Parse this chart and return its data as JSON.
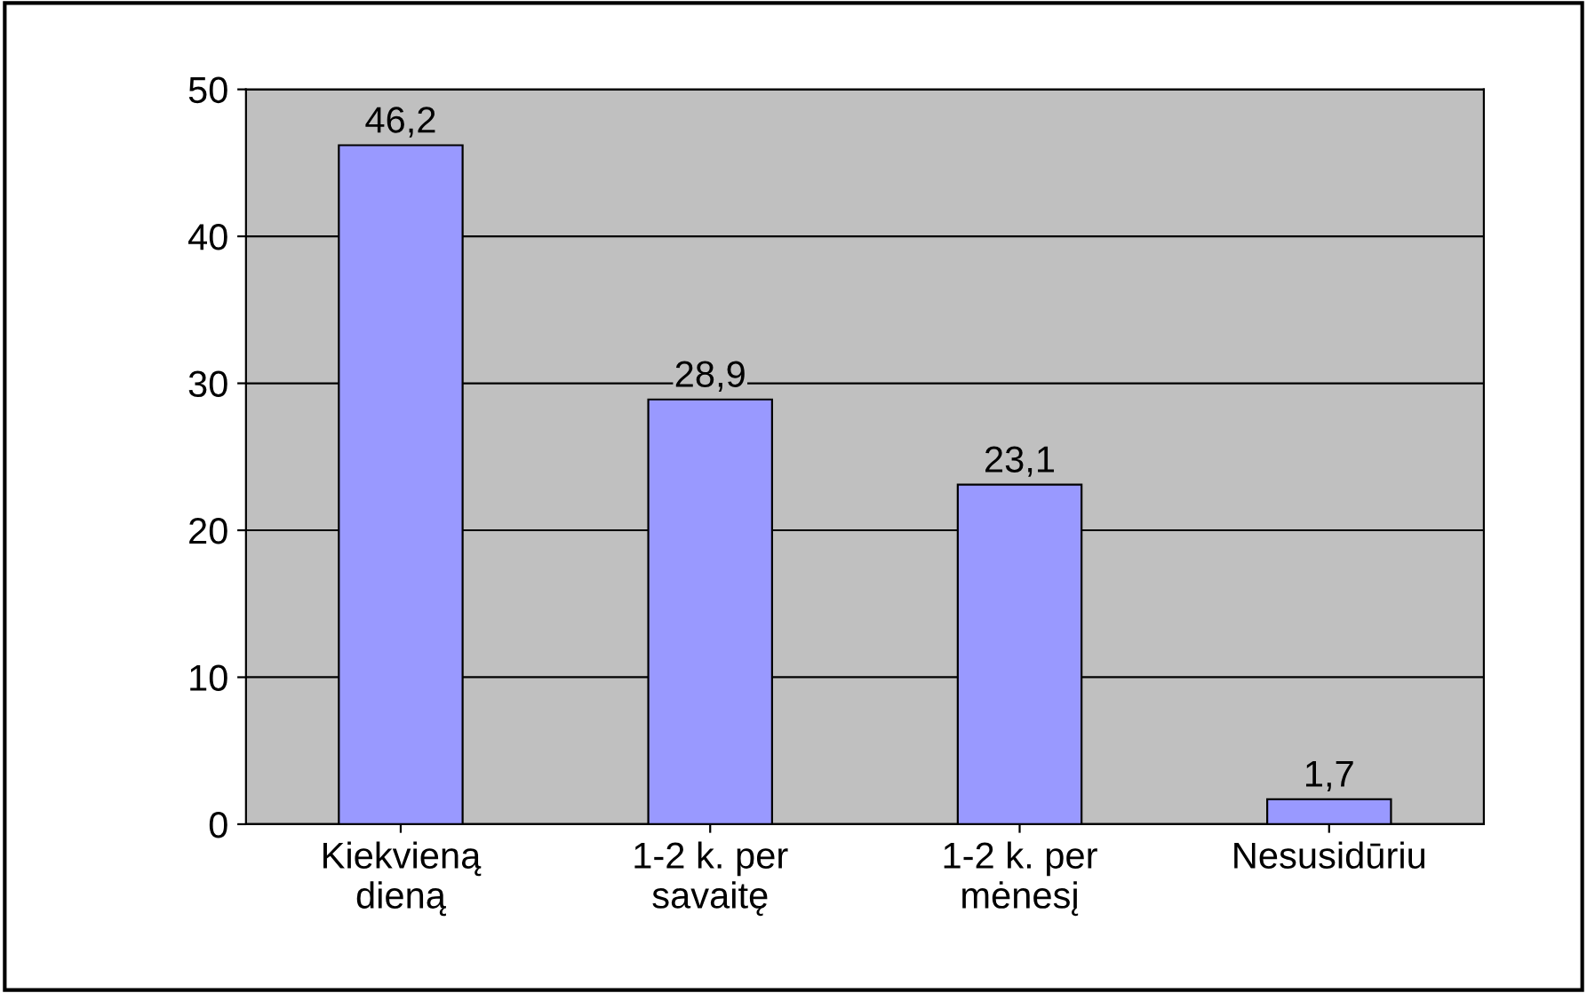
{
  "chart_data": {
    "type": "bar",
    "categories": [
      "Kiekvieną\ndieną",
      "1-2 k. per\nsavaitę",
      "1-2 k. per\nmėnesį",
      "Nesusidūriu"
    ],
    "values": [
      46.2,
      28.9,
      23.1,
      1.7
    ],
    "value_labels": [
      "46,2",
      "28,9",
      "23,1",
      "1,7"
    ],
    "color": "#9999ff",
    "ylim": [
      0,
      50
    ],
    "yticks": [
      0,
      10,
      20,
      30,
      40,
      50
    ],
    "grid": "y",
    "legend": false
  }
}
